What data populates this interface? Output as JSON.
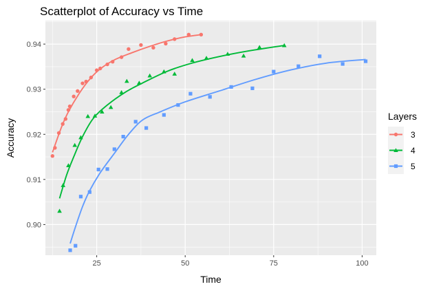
{
  "chart_data": {
    "type": "scatter",
    "title": "Scatterplot of Accuracy vs Time",
    "xlabel": "Time",
    "ylabel": "Accuracy",
    "xlim": [
      10.5,
      104
    ],
    "ylim": [
      0.8932,
      0.9452
    ],
    "x_ticks": [
      25,
      50,
      75,
      100
    ],
    "x_tick_labels": [
      "25",
      "50",
      "75",
      "100"
    ],
    "y_ticks": [
      0.9,
      0.91,
      0.92,
      0.93,
      0.94
    ],
    "y_tick_labels": [
      "0.90",
      "0.91",
      "0.92",
      "0.93",
      "0.94"
    ],
    "grid": true,
    "legend": {
      "title": "Layers",
      "position": "right"
    },
    "series": [
      {
        "name": "3",
        "color": "#F8766D",
        "marker": "circle",
        "points": [
          [
            12.5,
            0.9152
          ],
          [
            13.2,
            0.917
          ],
          [
            14.3,
            0.9203
          ],
          [
            15.4,
            0.9223
          ],
          [
            16.2,
            0.9234
          ],
          [
            17.0,
            0.9254
          ],
          [
            17.4,
            0.9262
          ],
          [
            18.5,
            0.9284
          ],
          [
            19.6,
            0.9296
          ],
          [
            21.0,
            0.9313
          ],
          [
            22.0,
            0.9317
          ],
          [
            23.4,
            0.9326
          ],
          [
            25.0,
            0.9342
          ],
          [
            26.0,
            0.9346
          ],
          [
            28.0,
            0.9355
          ],
          [
            29.5,
            0.9361
          ],
          [
            32.0,
            0.9371
          ],
          [
            34.0,
            0.9389
          ],
          [
            37.5,
            0.9398
          ],
          [
            41.0,
            0.9392
          ],
          [
            44.5,
            0.9401
          ],
          [
            47.0,
            0.9411
          ],
          [
            51.0,
            0.9421
          ],
          [
            54.5,
            0.9421
          ]
        ],
        "trend": [
          [
            12.5,
            0.916
          ],
          [
            15.0,
            0.9215
          ],
          [
            17.0,
            0.925
          ],
          [
            20.0,
            0.929
          ],
          [
            23.0,
            0.9322
          ],
          [
            26.0,
            0.9345
          ],
          [
            30.0,
            0.9365
          ],
          [
            35.0,
            0.9381
          ],
          [
            40.0,
            0.9395
          ],
          [
            45.0,
            0.9407
          ],
          [
            50.0,
            0.9416
          ],
          [
            54.5,
            0.9421
          ]
        ]
      },
      {
        "name": "4",
        "color": "#00BA38",
        "marker": "triangle",
        "points": [
          [
            14.5,
            0.903
          ],
          [
            15.5,
            0.9087
          ],
          [
            17.0,
            0.9131
          ],
          [
            18.8,
            0.9176
          ],
          [
            20.5,
            0.9193
          ],
          [
            22.5,
            0.924
          ],
          [
            24.5,
            0.9241
          ],
          [
            26.5,
            0.925
          ],
          [
            29.0,
            0.926
          ],
          [
            32.0,
            0.9293
          ],
          [
            33.5,
            0.9318
          ],
          [
            37.0,
            0.9314
          ],
          [
            40.0,
            0.933
          ],
          [
            44.0,
            0.9339
          ],
          [
            47.0,
            0.9334
          ],
          [
            52.0,
            0.9364
          ],
          [
            56.0,
            0.9369
          ],
          [
            62.0,
            0.9378
          ],
          [
            66.5,
            0.9374
          ],
          [
            71.0,
            0.9393
          ],
          [
            78.0,
            0.9397
          ]
        ],
        "trend": [
          [
            14.5,
            0.9058
          ],
          [
            16.5,
            0.911
          ],
          [
            18.5,
            0.915
          ],
          [
            21.0,
            0.9195
          ],
          [
            24.0,
            0.9235
          ],
          [
            28.0,
            0.9265
          ],
          [
            33.0,
            0.9293
          ],
          [
            38.0,
            0.9314
          ],
          [
            45.0,
            0.934
          ],
          [
            52.0,
            0.9358
          ],
          [
            60.0,
            0.9373
          ],
          [
            68.0,
            0.9385
          ],
          [
            78.0,
            0.9397
          ]
        ]
      },
      {
        "name": "5",
        "color": "#619CFF",
        "marker": "square",
        "points": [
          [
            17.5,
            0.8943
          ],
          [
            19.0,
            0.8953
          ],
          [
            20.5,
            0.9062
          ],
          [
            23.0,
            0.9072
          ],
          [
            25.5,
            0.9122
          ],
          [
            28.0,
            0.9123
          ],
          [
            30.0,
            0.9167
          ],
          [
            32.5,
            0.9195
          ],
          [
            36.0,
            0.9228
          ],
          [
            39.0,
            0.9214
          ],
          [
            44.0,
            0.9243
          ],
          [
            48.0,
            0.9265
          ],
          [
            51.5,
            0.929
          ],
          [
            57.0,
            0.9283
          ],
          [
            63.0,
            0.9305
          ],
          [
            69.0,
            0.9302
          ],
          [
            75.0,
            0.9339
          ],
          [
            82.0,
            0.9351
          ],
          [
            88.0,
            0.9373
          ],
          [
            94.5,
            0.9356
          ],
          [
            101.0,
            0.9362
          ]
        ],
        "trend": [
          [
            17.5,
            0.8958
          ],
          [
            19.0,
            0.8995
          ],
          [
            21.0,
            0.904
          ],
          [
            23.0,
            0.9075
          ],
          [
            26.0,
            0.9115
          ],
          [
            30.0,
            0.9158
          ],
          [
            34.0,
            0.92
          ],
          [
            38.0,
            0.9232
          ],
          [
            43.0,
            0.925
          ],
          [
            50.0,
            0.9272
          ],
          [
            60.0,
            0.9297
          ],
          [
            70.0,
            0.9322
          ],
          [
            80.0,
            0.9343
          ],
          [
            90.0,
            0.9358
          ],
          [
            101.0,
            0.9366
          ]
        ]
      }
    ]
  }
}
